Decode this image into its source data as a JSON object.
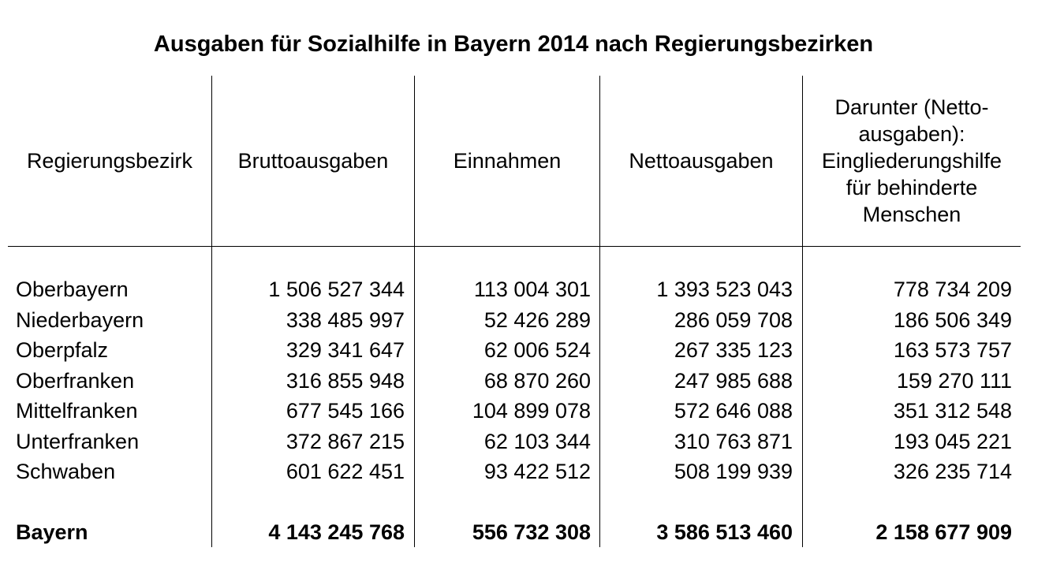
{
  "title": "Ausgaben für Sozialhilfe in Bayern 2014 nach Regierungsbezirken",
  "columns": [
    "Regierungsbezirk",
    "Bruttoausgaben",
    "Einnahmen",
    "Nettoausgaben",
    "Darunter (Netto-ausgaben): Eingliederungshilfe für behinderte Menschen"
  ],
  "column_5_lines": [
    "Darunter (Netto-",
    "ausgaben):",
    "Eingliederungshilfe",
    "für behinderte",
    "Menschen"
  ],
  "rows": [
    {
      "region": "Oberbayern",
      "brutto": "1 506 527 344",
      "einnahmen": "113 004 301",
      "netto": "1 393 523 043",
      "eingliederung": "778 734 209"
    },
    {
      "region": "Niederbayern",
      "brutto": "338 485 997",
      "einnahmen": "52 426 289",
      "netto": "286 059 708",
      "eingliederung": "186 506 349"
    },
    {
      "region": "Oberpfalz",
      "brutto": "329 341 647",
      "einnahmen": "62 006 524",
      "netto": "267 335 123",
      "eingliederung": "163 573 757"
    },
    {
      "region": "Oberfranken",
      "brutto": "316 855 948",
      "einnahmen": "68 870 260",
      "netto": "247 985 688",
      "eingliederung": "159 270 111"
    },
    {
      "region": "Mittelfranken",
      "brutto": "677 545 166",
      "einnahmen": "104 899 078",
      "netto": "572 646 088",
      "eingliederung": "351 312 548"
    },
    {
      "region": "Unterfranken",
      "brutto": "372 867 215",
      "einnahmen": "62 103 344",
      "netto": "310 763 871",
      "eingliederung": "193 045 221"
    },
    {
      "region": "Schwaben",
      "brutto": "601 622 451",
      "einnahmen": "93 422 512",
      "netto": "508 199 939",
      "eingliederung": "326 235 714"
    }
  ],
  "total": {
    "region": "Bayern",
    "brutto": "4 143 245 768",
    "einnahmen": "556 732 308",
    "netto": "3 586 513 460",
    "eingliederung": "2 158 677 909"
  }
}
